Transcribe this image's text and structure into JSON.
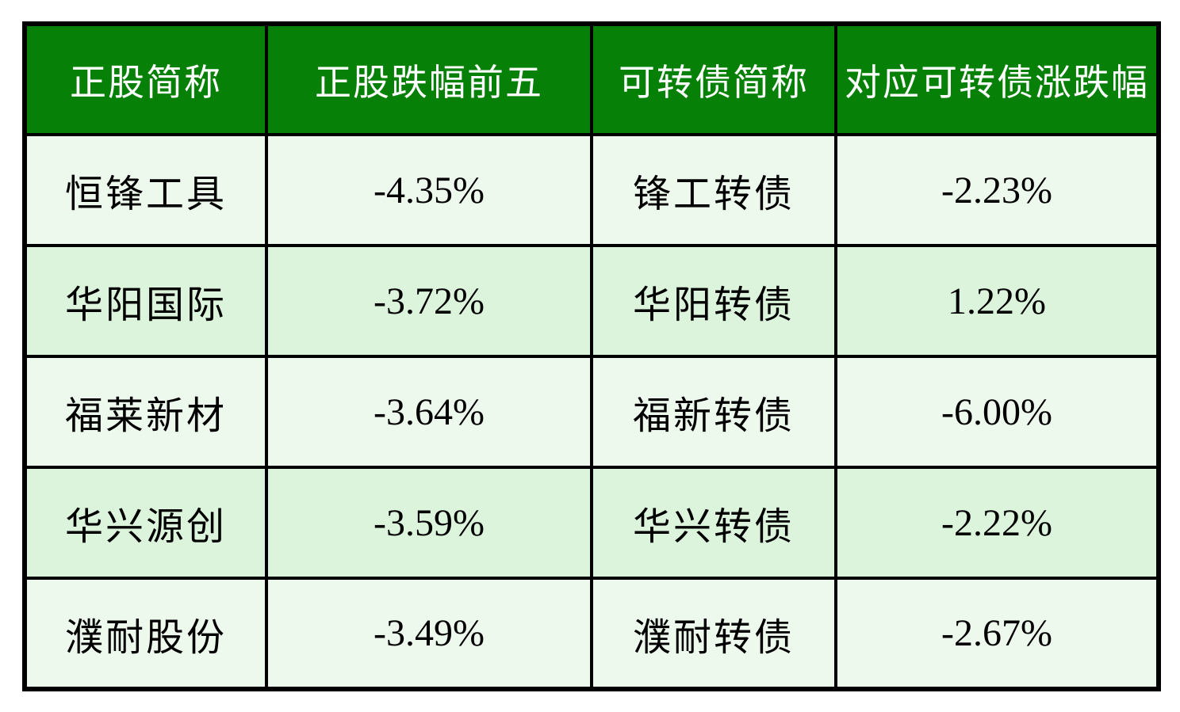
{
  "chart_data": {
    "type": "table",
    "columns": [
      "正股简称",
      "正股跌幅前五",
      "可转债简称",
      "对应可转债涨跌幅"
    ],
    "rows": [
      [
        "恒锋工具",
        "-4.35%",
        "锋工转债",
        "-2.23%"
      ],
      [
        "华阳国际",
        "-3.72%",
        "华阳转债",
        "1.22%"
      ],
      [
        "福莱新材",
        "-3.64%",
        "福新转债",
        "-6.00%"
      ],
      [
        "华兴源创",
        "-3.59%",
        "华兴转债",
        "-2.22%"
      ],
      [
        "濮耐股份",
        "-3.49%",
        "濮耐转债",
        "-2.67%"
      ]
    ],
    "layout_hints": {
      "header_position": "top",
      "grid": true,
      "alternating_rows": true
    }
  },
  "colors": {
    "header_bg": "#078007",
    "header_text": "#ffffff",
    "row_light_bg": "#eef9ee",
    "row_alt_bg": "#dcf4dc",
    "border": "#000000",
    "cell_text": "#000000",
    "page_bg": "#ffffff"
  }
}
